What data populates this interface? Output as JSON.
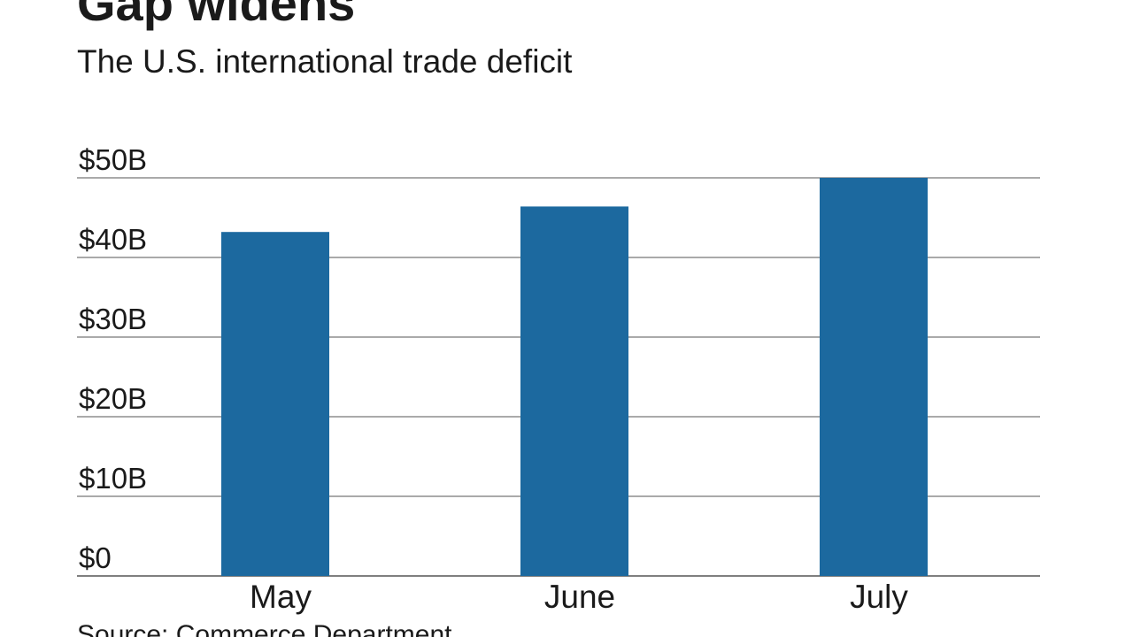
{
  "title": "Gap widens",
  "subtitle": "The U.S. international trade deficit",
  "source": "Source: Commerce Department",
  "colors": {
    "bar": "#1c699f",
    "gridline": "#555555",
    "text": "#1a1a1a"
  },
  "chart_data": {
    "type": "bar",
    "title": "Gap widens",
    "subtitle": "The U.S. international trade deficit",
    "categories": [
      "May",
      "June",
      "July"
    ],
    "values": [
      43.2,
      46.4,
      50.1
    ],
    "unit": "billions of dollars",
    "ylim": [
      0,
      50
    ],
    "yticks": [
      0,
      10,
      20,
      30,
      40,
      50
    ],
    "ytick_labels": [
      "$0",
      "$10B",
      "$20B",
      "$30B",
      "$40B",
      "$50B"
    ],
    "grid": true,
    "legend": "none"
  }
}
